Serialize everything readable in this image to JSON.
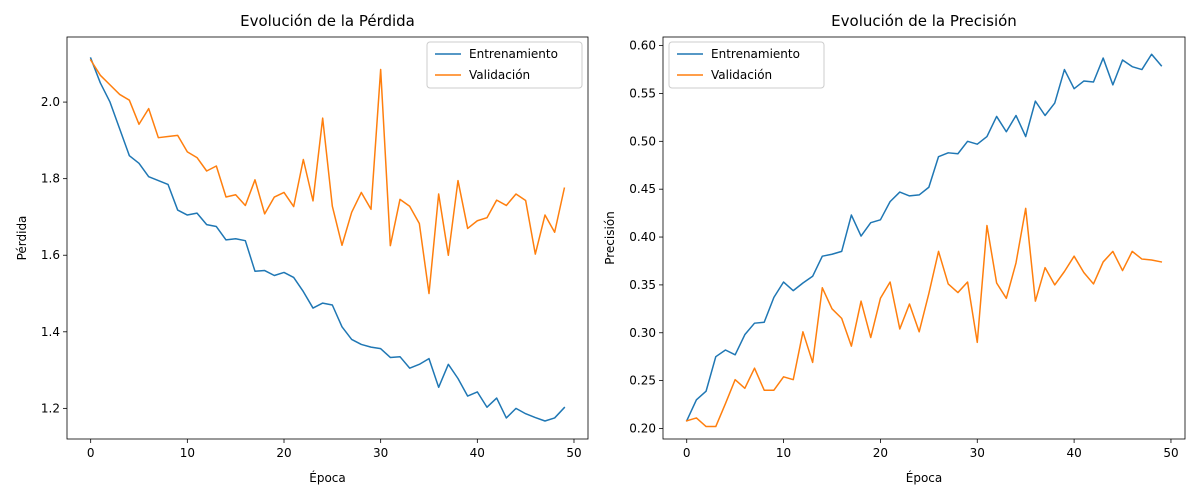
{
  "chart_data": [
    {
      "type": "line",
      "title": "Evolución de la Pérdida",
      "xlabel": "Época",
      "ylabel": "Pérdida",
      "xlim": [
        -2.45,
        51.45
      ],
      "ylim": [
        1.12,
        2.17
      ],
      "xticks": [
        0,
        10,
        20,
        30,
        40,
        50
      ],
      "xtick_labels": [
        "0",
        "10",
        "20",
        "30",
        "40",
        "50"
      ],
      "yticks": [
        1.2,
        1.4,
        1.6,
        1.8,
        2.0
      ],
      "ytick_labels": [
        "1.2",
        "1.4",
        "1.6",
        "1.8",
        "2.0"
      ],
      "grid": false,
      "legend_position": "top-right",
      "x": [
        0,
        1,
        2,
        3,
        4,
        5,
        6,
        7,
        8,
        9,
        10,
        11,
        12,
        13,
        14,
        15,
        16,
        17,
        18,
        19,
        20,
        21,
        22,
        23,
        24,
        25,
        26,
        27,
        28,
        29,
        30,
        31,
        32,
        33,
        34,
        35,
        36,
        37,
        38,
        39,
        40,
        41,
        42,
        43,
        44,
        45,
        46,
        47,
        48,
        49
      ],
      "series": [
        {
          "name": "Entrenamiento",
          "color": "#1f77b4",
          "values": [
            2.115,
            2.05,
            2.0,
            1.93,
            1.86,
            1.84,
            1.805,
            1.795,
            1.785,
            1.718,
            1.705,
            1.71,
            1.68,
            1.675,
            1.64,
            1.643,
            1.638,
            1.558,
            1.56,
            1.547,
            1.555,
            1.542,
            1.505,
            1.462,
            1.475,
            1.47,
            1.413,
            1.38,
            1.367,
            1.36,
            1.356,
            1.333,
            1.335,
            1.305,
            1.315,
            1.33,
            1.255,
            1.315,
            1.278,
            1.232,
            1.243,
            1.203,
            1.227,
            1.175,
            1.2,
            1.186,
            1.176,
            1.167,
            1.175,
            1.202
          ]
        },
        {
          "name": "Validación",
          "color": "#ff7f0e",
          "values": [
            2.11,
            2.07,
            2.045,
            2.02,
            2.005,
            1.942,
            1.983,
            1.907,
            1.91,
            1.913,
            1.87,
            1.855,
            1.82,
            1.833,
            1.752,
            1.758,
            1.73,
            1.797,
            1.708,
            1.752,
            1.764,
            1.727,
            1.85,
            1.742,
            1.958,
            1.728,
            1.626,
            1.712,
            1.764,
            1.72,
            2.085,
            1.625,
            1.746,
            1.728,
            1.683,
            1.5,
            1.76,
            1.6,
            1.795,
            1.67,
            1.69,
            1.698,
            1.744,
            1.73,
            1.76,
            1.743,
            1.603,
            1.705,
            1.66,
            1.775
          ]
        }
      ]
    },
    {
      "type": "line",
      "title": "Evolución de la Precisión",
      "xlabel": "Época",
      "ylabel": "Precisión",
      "xlim": [
        -2.45,
        51.45
      ],
      "ylim": [
        0.189,
        0.609
      ],
      "xticks": [
        0,
        10,
        20,
        30,
        40,
        50
      ],
      "xtick_labels": [
        "0",
        "10",
        "20",
        "30",
        "40",
        "50"
      ],
      "yticks": [
        0.2,
        0.25,
        0.3,
        0.35,
        0.4,
        0.45,
        0.5,
        0.55,
        0.6
      ],
      "ytick_labels": [
        "0.20",
        "0.25",
        "0.30",
        "0.35",
        "0.40",
        "0.45",
        "0.50",
        "0.55",
        "0.60"
      ],
      "grid": false,
      "legend_position": "top-left",
      "x": [
        0,
        1,
        2,
        3,
        4,
        5,
        6,
        7,
        8,
        9,
        10,
        11,
        12,
        13,
        14,
        15,
        16,
        17,
        18,
        19,
        20,
        21,
        22,
        23,
        24,
        25,
        26,
        27,
        28,
        29,
        30,
        31,
        32,
        33,
        34,
        35,
        36,
        37,
        38,
        39,
        40,
        41,
        42,
        43,
        44,
        45,
        46,
        47,
        48,
        49
      ],
      "series": [
        {
          "name": "Entrenamiento",
          "color": "#1f77b4",
          "values": [
            0.208,
            0.23,
            0.239,
            0.275,
            0.282,
            0.277,
            0.298,
            0.31,
            0.311,
            0.337,
            0.353,
            0.344,
            0.352,
            0.359,
            0.38,
            0.382,
            0.385,
            0.423,
            0.401,
            0.415,
            0.418,
            0.437,
            0.447,
            0.443,
            0.444,
            0.452,
            0.484,
            0.488,
            0.487,
            0.5,
            0.497,
            0.505,
            0.526,
            0.51,
            0.527,
            0.505,
            0.542,
            0.527,
            0.54,
            0.575,
            0.555,
            0.563,
            0.562,
            0.587,
            0.559,
            0.585,
            0.578,
            0.575,
            0.591,
            0.579
          ]
        },
        {
          "name": "Validación",
          "color": "#ff7f0e",
          "values": [
            0.208,
            0.211,
            0.202,
            0.202,
            0.226,
            0.251,
            0.242,
            0.263,
            0.24,
            0.24,
            0.254,
            0.251,
            0.301,
            0.269,
            0.347,
            0.325,
            0.315,
            0.286,
            0.333,
            0.295,
            0.336,
            0.353,
            0.304,
            0.33,
            0.301,
            0.341,
            0.385,
            0.351,
            0.342,
            0.353,
            0.29,
            0.412,
            0.352,
            0.336,
            0.373,
            0.43,
            0.333,
            0.368,
            0.35,
            0.364,
            0.38,
            0.363,
            0.351,
            0.374,
            0.385,
            0.365,
            0.385,
            0.377,
            0.376,
            0.374
          ]
        }
      ]
    }
  ]
}
